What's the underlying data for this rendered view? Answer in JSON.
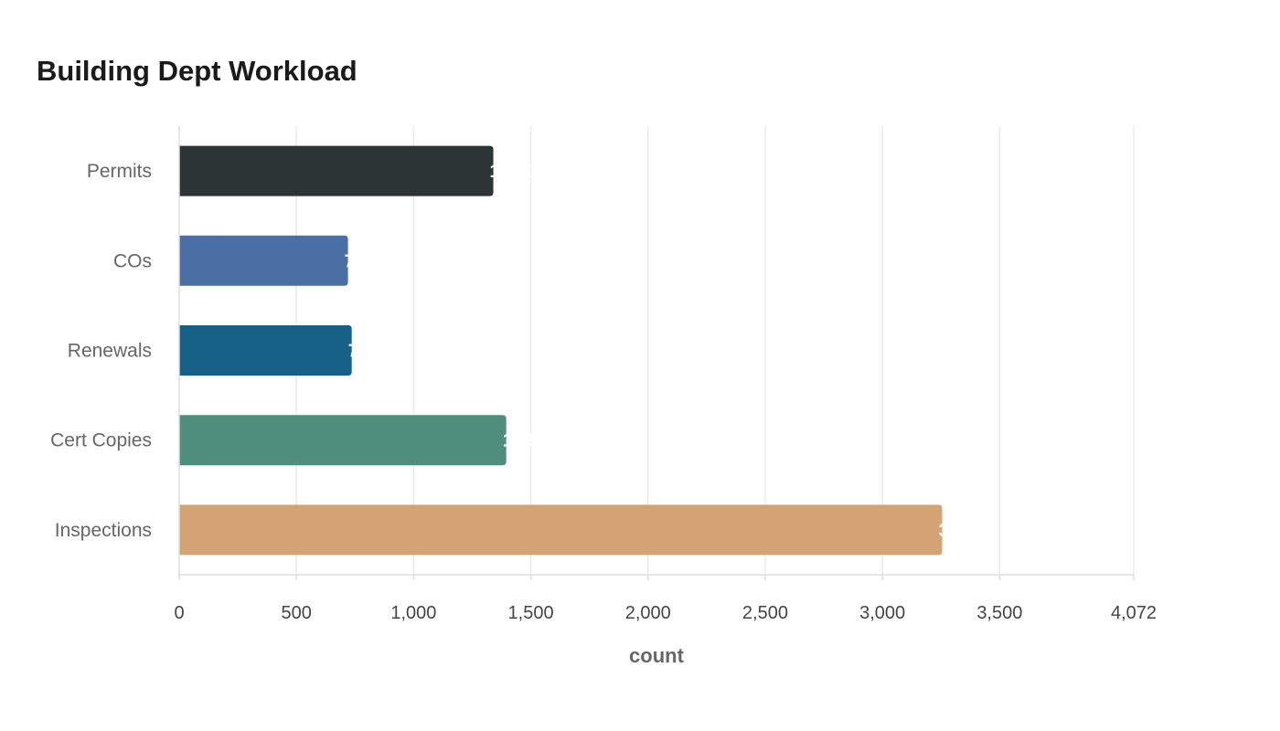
{
  "chart_data": {
    "type": "bar",
    "orientation": "horizontal",
    "title": "Building Dept Workload",
    "xlabel": "count",
    "ylabel": "",
    "categories": [
      "Permits",
      "COs",
      "Renewals",
      "Cert Copies",
      "Inspections"
    ],
    "values": [
      1340,
      720,
      736,
      1395,
      3255
    ],
    "colors": [
      "#2d3436",
      "#4a6fa5",
      "#166088",
      "#4f8d7c",
      "#d4a373"
    ],
    "xlim": [
      0,
      4072
    ],
    "xticks": [
      0,
      500,
      1000,
      1500,
      2000,
      2500,
      3000,
      3500,
      4072
    ],
    "xtick_labels": [
      "0",
      "500",
      "1,000",
      "1,500",
      "2,000",
      "2,500",
      "3,000",
      "3,500",
      "4,072"
    ],
    "value_labels": [
      "1,340",
      "720",
      "736",
      "1,395",
      "3,255"
    ],
    "grid": true,
    "legend": "none"
  }
}
